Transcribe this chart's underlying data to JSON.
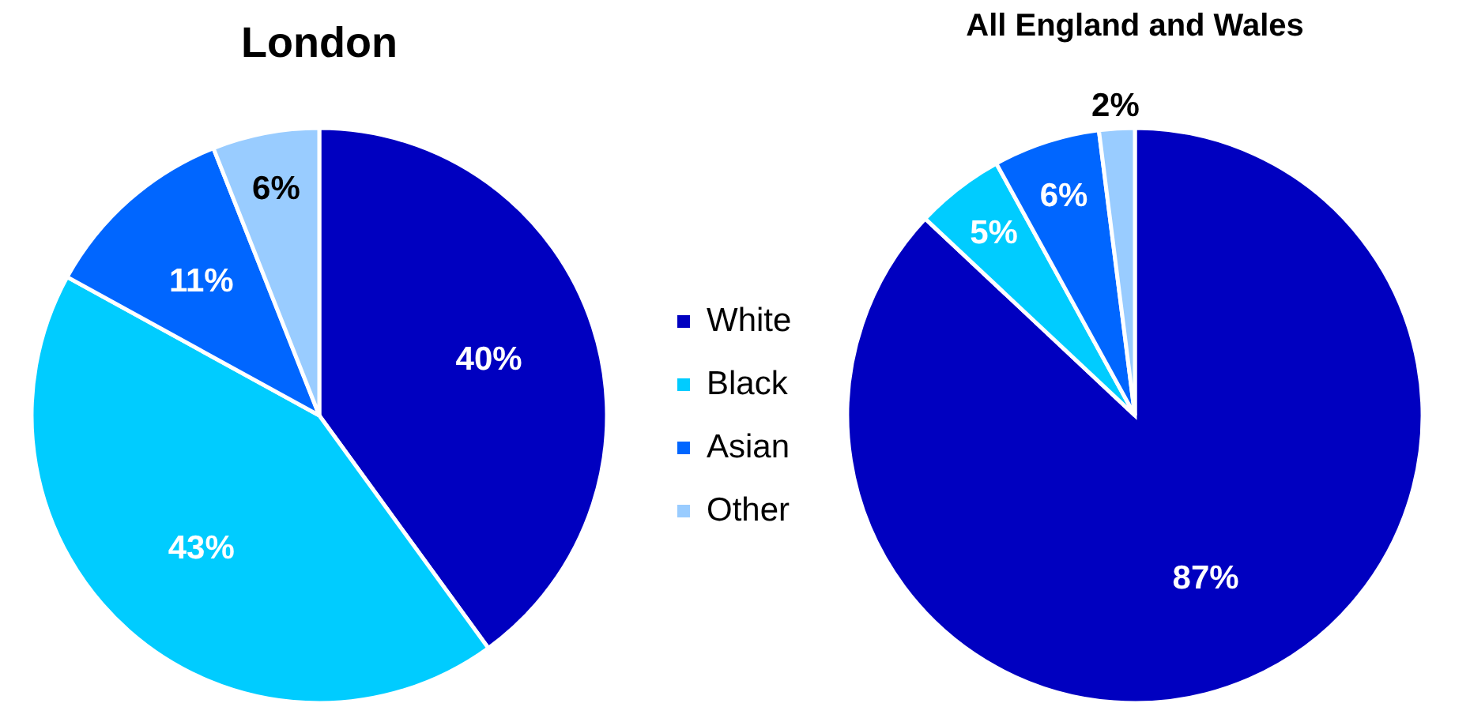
{
  "chart_data": [
    {
      "type": "pie",
      "title": "London",
      "categories": [
        "White",
        "Black",
        "Asian",
        "Other"
      ],
      "values": [
        40,
        43,
        11,
        6
      ],
      "colors": [
        "#0000c0",
        "#00ccff",
        "#0066ff",
        "#99ccff"
      ],
      "value_labels": [
        "40%",
        "43%",
        "11%",
        "6%"
      ],
      "legend": "right"
    },
    {
      "type": "pie",
      "title": "All England and Wales",
      "categories": [
        null,
        null,
        null,
        null
      ],
      "values": [
        87,
        5,
        6,
        2
      ],
      "colors": [
        "#0000c0",
        "#00ccff",
        "#0066ff",
        "#99ccff"
      ],
      "value_labels": [
        "87%",
        "5%",
        "6%",
        "2%"
      ],
      "legend": false
    }
  ]
}
